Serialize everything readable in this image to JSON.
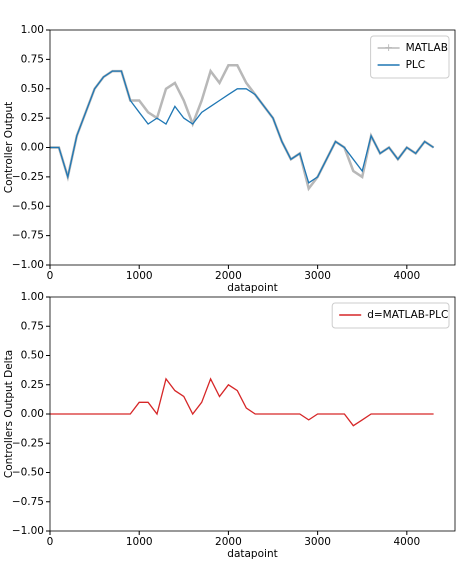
{
  "chart_data": [
    {
      "type": "line",
      "xlabel": "datapoint",
      "ylabel": "Controller Output",
      "legend": "upper right",
      "grid": false,
      "x": [
        0,
        100,
        200,
        300,
        400,
        500,
        600,
        700,
        800,
        900,
        1000,
        1100,
        1200,
        1300,
        1400,
        1500,
        1600,
        1700,
        1800,
        1900,
        2000,
        2100,
        2200,
        2300,
        2400,
        2500,
        2600,
        2700,
        2800,
        2900,
        3000,
        3100,
        3200,
        3300,
        3400,
        3500,
        3600,
        3700,
        3800,
        3900,
        4000,
        4100,
        4200,
        4300
      ],
      "xlim": [
        0,
        4540
      ],
      "xticks": [
        0,
        1000,
        2000,
        3000,
        4000
      ],
      "ylim": [
        -1,
        1
      ],
      "yticks": [
        {
          "value": 1,
          "label": "1.00"
        },
        {
          "value": 0.75,
          "label": "0.75"
        },
        {
          "value": 0.5,
          "label": "0.50"
        },
        {
          "value": 0.25,
          "label": "0.25"
        },
        {
          "value": 0,
          "label": "0.00"
        },
        {
          "value": -0.25,
          "label": "−0.25"
        },
        {
          "value": -0.5,
          "label": "−0.50"
        },
        {
          "value": -0.75,
          "label": "−0.75"
        },
        {
          "value": -1,
          "label": "−1.00"
        }
      ],
      "series": [
        {
          "name": "MATLAB",
          "color": "#b8b8b8",
          "marker": "+",
          "values": [
            0,
            0,
            -0.25,
            0.1,
            0.3,
            0.5,
            0.6,
            0.65,
            0.65,
            0.4,
            0.4,
            0.3,
            0.25,
            0.5,
            0.55,
            0.4,
            0.2,
            0.4,
            0.65,
            0.55,
            0.7,
            0.7,
            0.55,
            0.45,
            0.35,
            0.25,
            0.05,
            -0.1,
            -0.05,
            -0.35,
            -0.25,
            -0.1,
            0.05,
            0,
            -0.2,
            -0.25,
            0.1,
            -0.05,
            0,
            -0.1,
            0,
            -0.05,
            0.05,
            0
          ]
        },
        {
          "name": "PLC",
          "color": "#1f77b4",
          "values": [
            0,
            0,
            -0.25,
            0.1,
            0.3,
            0.5,
            0.6,
            0.65,
            0.65,
            0.4,
            0.3,
            0.2,
            0.25,
            0.2,
            0.35,
            0.25,
            0.2,
            0.3,
            0.35,
            0.4,
            0.45,
            0.5,
            0.5,
            0.45,
            0.35,
            0.25,
            0.05,
            -0.1,
            -0.05,
            -0.3,
            -0.25,
            -0.1,
            0.05,
            0,
            -0.1,
            -0.2,
            0.1,
            -0.05,
            0,
            -0.1,
            0,
            -0.05,
            0.05,
            0
          ]
        }
      ]
    },
    {
      "type": "line",
      "xlabel": "datapoint",
      "ylabel": "Controllers Output Delta",
      "legend": "upper right",
      "grid": false,
      "x": [
        0,
        100,
        200,
        300,
        400,
        500,
        600,
        700,
        800,
        900,
        1000,
        1100,
        1200,
        1300,
        1400,
        1500,
        1600,
        1700,
        1800,
        1900,
        2000,
        2100,
        2200,
        2300,
        2400,
        2500,
        2600,
        2700,
        2800,
        2900,
        3000,
        3100,
        3200,
        3300,
        3400,
        3500,
        3600,
        3700,
        3800,
        3900,
        4000,
        4100,
        4200,
        4300
      ],
      "xlim": [
        0,
        4540
      ],
      "xticks": [
        0,
        1000,
        2000,
        3000,
        4000
      ],
      "ylim": [
        -1,
        1
      ],
      "yticks": [
        {
          "value": 1,
          "label": "1.00"
        },
        {
          "value": 0.75,
          "label": "0.75"
        },
        {
          "value": 0.5,
          "label": "0.50"
        },
        {
          "value": 0.25,
          "label": "0.25"
        },
        {
          "value": 0,
          "label": "0.00"
        },
        {
          "value": -0.25,
          "label": "−0.25"
        },
        {
          "value": -0.5,
          "label": "−0.50"
        },
        {
          "value": -0.75,
          "label": "−0.75"
        },
        {
          "value": -1,
          "label": "−1.00"
        }
      ],
      "series": [
        {
          "name": "d=MATLAB-PLC",
          "color": "#d62728",
          "values": [
            0,
            0,
            0,
            0,
            0,
            0,
            0,
            0,
            0,
            0,
            0.1,
            0.1,
            0,
            0.3,
            0.2,
            0.15,
            0,
            0.1,
            0.3,
            0.15,
            0.25,
            0.2,
            0.05,
            0,
            0,
            0,
            0,
            0,
            0,
            -0.05,
            0,
            0,
            0,
            0,
            -0.1,
            -0.05,
            0,
            0,
            0,
            0,
            0,
            0,
            0,
            0
          ]
        }
      ]
    }
  ]
}
